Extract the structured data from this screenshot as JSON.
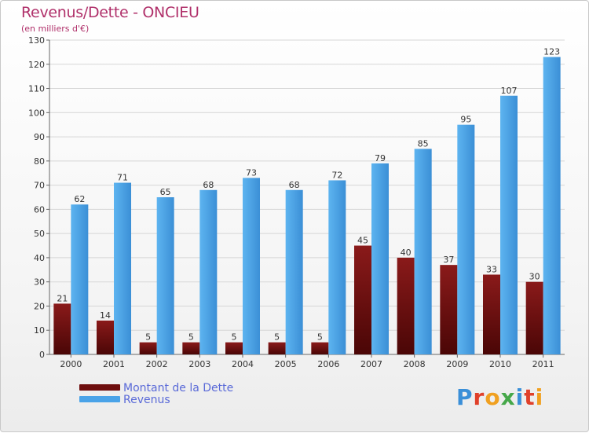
{
  "header": {
    "title": "Revenus/Dette - ONCIEU",
    "subtitle": "(en milliers d'€)"
  },
  "legend": {
    "debt_label": "Montant de la Dette",
    "revenue_label": "Revenus"
  },
  "logo": {
    "text": "Proxiti",
    "letter_colors": [
      "#3a8fd8",
      "#e0402a",
      "#f0a020",
      "#46a84a",
      "#3a8fd8",
      "#e0402a",
      "#f0a020"
    ]
  },
  "colors": {
    "debt": "#6e0e0e",
    "revenue": "#4aa3e8",
    "title": "#b0306a",
    "legend_text": "#5a6ad8"
  },
  "chart_data": {
    "type": "bar",
    "title": "Revenus/Dette - ONCIEU",
    "ylabel": "(en milliers d'€)",
    "categories": [
      "2000",
      "2001",
      "2002",
      "2003",
      "2004",
      "2005",
      "2006",
      "2007",
      "2008",
      "2009",
      "2010",
      "2011"
    ],
    "series": [
      {
        "name": "Montant de la Dette",
        "values": [
          21,
          14,
          5,
          5,
          5,
          5,
          5,
          45,
          40,
          37,
          33,
          30
        ]
      },
      {
        "name": "Revenus",
        "values": [
          62,
          71,
          65,
          68,
          73,
          68,
          72,
          79,
          85,
          95,
          107,
          123
        ]
      }
    ],
    "ylim": [
      0,
      130
    ],
    "yticks": [
      0,
      10,
      20,
      30,
      40,
      50,
      60,
      70,
      80,
      90,
      100,
      110,
      120,
      130
    ],
    "grid": true,
    "legend_position": "bottom-left"
  }
}
